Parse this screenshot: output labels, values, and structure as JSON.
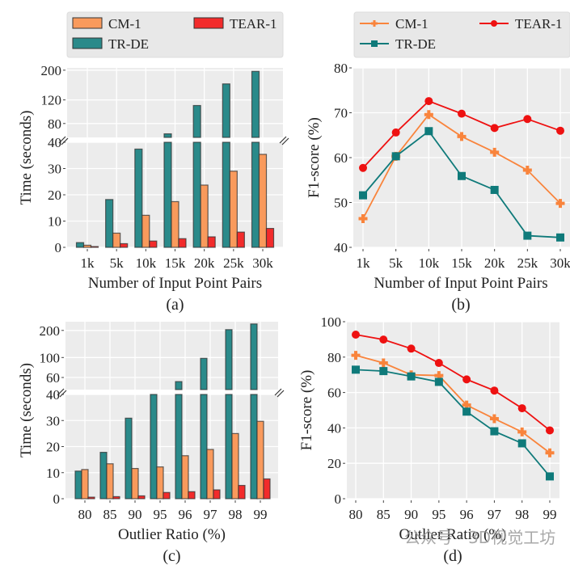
{
  "colors": {
    "CM-1": "#f99a5c",
    "TR-DE": "#2a8a8a",
    "TEAR-1": "#f22b2b",
    "CM-1-line": "#f9843c",
    "TR-DE-line": "#0f7a7a",
    "TEAR-1-line": "#ee1111",
    "plot_bg": "#ececec",
    "legend_bg": "#e8e8e8"
  },
  "watermark": "公众号 · 3D视觉工坊",
  "chart_data": [
    {
      "id": "a",
      "type": "bar",
      "caption": "(a)",
      "title": "",
      "xlabel": "Number of Input Point Pairs",
      "ylabel": "Time (seconds)",
      "categories": [
        "1k",
        "5k",
        "10k",
        "15k",
        "20k",
        "25k",
        "30k"
      ],
      "series": [
        {
          "name": "TR-DE",
          "values": [
            1.8,
            18.2,
            37.4,
            67,
            109,
            158,
            196
          ]
        },
        {
          "name": "CM-1",
          "values": [
            0.8,
            5.4,
            12.2,
            17.4,
            23.7,
            29.0,
            35.4
          ]
        },
        {
          "name": "TEAR-1",
          "values": [
            0.3,
            1.4,
            2.4,
            3.3,
            4.0,
            5.8,
            7.2
          ]
        }
      ],
      "legend": {
        "entries": [
          "CM-1",
          "TEAR-1",
          "TR-DE"
        ],
        "placement": "top (outside)"
      },
      "broken_axis": {
        "lower": {
          "range": [
            0,
            40
          ],
          "ticks": [
            0,
            10,
            20,
            30,
            40
          ],
          "scale": "linear"
        },
        "upper": {
          "range": [
            63,
            208
          ],
          "ticks": [
            80,
            120,
            200
          ],
          "scale": "log"
        }
      },
      "grid": true
    },
    {
      "id": "b",
      "type": "line",
      "caption": "(b)",
      "title": "",
      "xlabel": "Number of Input Point Pairs",
      "ylabel": "F1-score (%)",
      "categories": [
        "1k",
        "5k",
        "10k",
        "15k",
        "20k",
        "25k",
        "30k"
      ],
      "series": [
        {
          "name": "CM-1",
          "marker": "plus",
          "values": [
            46.4,
            60.3,
            69.6,
            64.7,
            61.2,
            57.2,
            49.8
          ]
        },
        {
          "name": "TEAR-1",
          "marker": "circle",
          "values": [
            57.7,
            65.6,
            72.6,
            69.8,
            66.6,
            68.6,
            66.0
          ]
        },
        {
          "name": "TR-DE",
          "marker": "square",
          "values": [
            51.6,
            60.3,
            65.9,
            55.9,
            52.8,
            42.6,
            42.2
          ]
        }
      ],
      "legend": {
        "entries": [
          "CM-1",
          "TEAR-1",
          "TR-DE"
        ],
        "placement": "top (outside)"
      },
      "ylim": [
        40,
        80
      ],
      "yticks": [
        40,
        50,
        60,
        70,
        80
      ],
      "grid": true
    },
    {
      "id": "c",
      "type": "bar",
      "caption": "(c)",
      "title": "",
      "xlabel": "Outlier Ratio (%)",
      "ylabel": "Time (seconds)",
      "categories": [
        "80",
        "85",
        "90",
        "95",
        "96",
        "97",
        "98",
        "99"
      ],
      "series": [
        {
          "name": "TR-DE",
          "values": [
            10.6,
            17.8,
            30.9,
            44,
            54,
            98,
            204,
            236
          ]
        },
        {
          "name": "CM-1",
          "values": [
            11.2,
            13.4,
            11.6,
            12.2,
            16.5,
            18.9,
            25.0,
            29.7
          ]
        },
        {
          "name": "TEAR-1",
          "values": [
            0.6,
            0.8,
            1.1,
            2.4,
            2.7,
            3.4,
            5.1,
            7.6
          ]
        }
      ],
      "broken_axis": {
        "lower": {
          "range": [
            0,
            40
          ],
          "ticks": [
            0,
            10,
            20,
            30,
            40
          ],
          "scale": "linear"
        },
        "upper": {
          "range": [
            44,
            250
          ],
          "ticks": [
            60,
            100,
            200
          ],
          "scale": "log"
        }
      },
      "grid": true
    },
    {
      "id": "d",
      "type": "line",
      "caption": "(d)",
      "title": "",
      "xlabel": "Outlier Ratio (%)",
      "ylabel": "F1-score (%)",
      "categories": [
        "80",
        "85",
        "90",
        "95",
        "96",
        "97",
        "98",
        "99"
      ],
      "series": [
        {
          "name": "TEAR-1",
          "marker": "circle",
          "values": [
            92.7,
            89.9,
            84.8,
            76.7,
            67.4,
            61.1,
            51.1,
            38.6
          ]
        },
        {
          "name": "CM-1",
          "marker": "plus",
          "values": [
            81.0,
            76.7,
            70.0,
            69.6,
            52.9,
            45.2,
            37.7,
            25.9
          ]
        },
        {
          "name": "TR-DE",
          "marker": "square",
          "values": [
            72.9,
            72.1,
            69.1,
            66.0,
            49.2,
            38.1,
            31.3,
            12.6
          ]
        }
      ],
      "ylim": [
        0,
        100
      ],
      "yticks": [
        0,
        20,
        40,
        60,
        80,
        100
      ],
      "grid": true
    }
  ]
}
